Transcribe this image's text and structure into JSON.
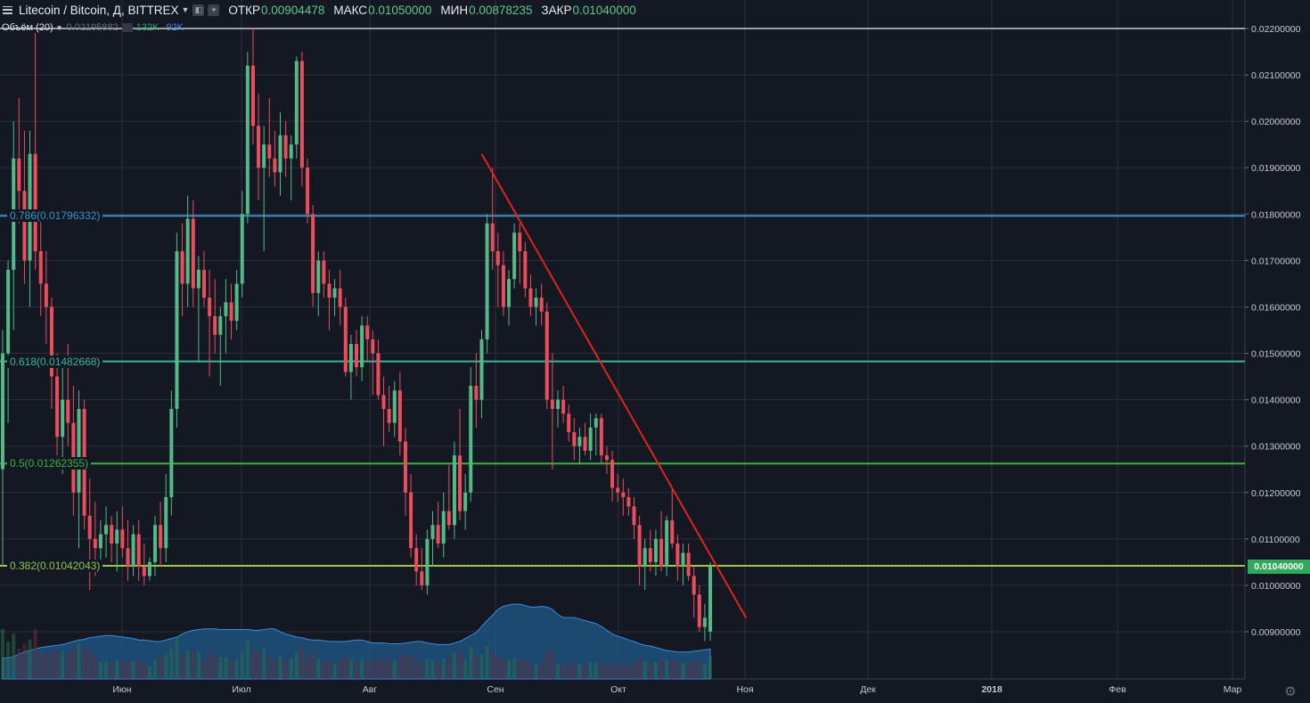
{
  "header": {
    "title": "Litecoin / Bitcoin, Д, BITTREX",
    "open_label": "ОТКР",
    "open_value": "0.00904478",
    "high_label": "МАКС",
    "high_value": "0.01050000",
    "low_label": "МИН",
    "low_value": "0.00878235",
    "close_label": "ЗАКР",
    "close_value": "0.01040000",
    "menu_icon": "hamburger-menu-icon",
    "settings_icon": "gear-icon"
  },
  "volume_legend": {
    "label": "Объём (20)",
    "muted_value": "0.02195882",
    "green_value": "132K",
    "blue_value": "92K"
  },
  "colors": {
    "background": "#141823",
    "grid": "#2a2f3b",
    "up": "#53b987",
    "down": "#eb4d5c",
    "fib_0786": "#3a91c9",
    "fib_0618": "#36b59a",
    "fib_05": "#3cb043",
    "fib_0382": "#8bc34a",
    "trendline": "#e2231a",
    "volume_area": "#1e5a8a",
    "axis_text": "#c5cbce"
  },
  "chart_data": {
    "type": "candlestick",
    "symbol": "Litecoin / Bitcoin",
    "interval": "Д",
    "exchange": "BITTREX",
    "ylim": [
      0.0083,
      0.0226
    ],
    "y_ticks": [
      "0.02200000",
      "0.02100000",
      "0.02000000",
      "0.01900000",
      "0.01800000",
      "0.01700000",
      "0.01600000",
      "0.01500000",
      "0.01400000",
      "0.01300000",
      "0.01200000",
      "0.01100000",
      "0.01000000",
      "0.00900000"
    ],
    "x_ticks": [
      "Июн",
      "Июл",
      "Авг",
      "Сен",
      "Окт",
      "Ноя",
      "Дек",
      "2018",
      "Фев",
      "Мар"
    ],
    "last_price": "0.01040000",
    "candles": [
      [
        0.0125,
        0.0155,
        0.0104,
        0.015
      ],
      [
        0.015,
        0.017,
        0.0135,
        0.0168
      ],
      [
        0.0168,
        0.02,
        0.0155,
        0.0192
      ],
      [
        0.0192,
        0.0205,
        0.0178,
        0.0185
      ],
      [
        0.0185,
        0.0198,
        0.0165,
        0.017
      ],
      [
        0.017,
        0.0198,
        0.016,
        0.0193
      ],
      [
        0.0193,
        0.0219,
        0.0168,
        0.0172
      ],
      [
        0.0172,
        0.018,
        0.0158,
        0.0165
      ],
      [
        0.0165,
        0.0172,
        0.0152,
        0.016
      ],
      [
        0.016,
        0.0162,
        0.0138,
        0.0145
      ],
      [
        0.0145,
        0.015,
        0.0128,
        0.0132
      ],
      [
        0.0132,
        0.0148,
        0.0124,
        0.014
      ],
      [
        0.014,
        0.0152,
        0.013,
        0.0135
      ],
      [
        0.0135,
        0.0143,
        0.0115,
        0.012
      ],
      [
        0.012,
        0.0142,
        0.0108,
        0.0138
      ],
      [
        0.0138,
        0.014,
        0.0112,
        0.0115
      ],
      [
        0.0115,
        0.0123,
        0.0099,
        0.011
      ],
      [
        0.011,
        0.0118,
        0.0102,
        0.0108
      ],
      [
        0.0108,
        0.0114,
        0.0104,
        0.0111
      ],
      [
        0.0111,
        0.0117,
        0.0106,
        0.0113
      ],
      [
        0.0113,
        0.0115,
        0.0105,
        0.0109
      ],
      [
        0.0109,
        0.0116,
        0.0103,
        0.0112
      ],
      [
        0.0112,
        0.0117,
        0.0106,
        0.0108
      ],
      [
        0.0108,
        0.0114,
        0.0101,
        0.0104
      ],
      [
        0.0104,
        0.0113,
        0.0102,
        0.0111
      ],
      [
        0.0111,
        0.0114,
        0.0101,
        0.0104
      ],
      [
        0.0104,
        0.0109,
        0.01,
        0.0102
      ],
      [
        0.0102,
        0.0106,
        0.0101,
        0.0105
      ],
      [
        0.0105,
        0.0115,
        0.0102,
        0.0113
      ],
      [
        0.0113,
        0.0118,
        0.0104,
        0.0108
      ],
      [
        0.0108,
        0.0124,
        0.0105,
        0.0119
      ],
      [
        0.0119,
        0.0142,
        0.0115,
        0.0138
      ],
      [
        0.0138,
        0.0176,
        0.0134,
        0.0172
      ],
      [
        0.0172,
        0.0178,
        0.0158,
        0.0165
      ],
      [
        0.0165,
        0.0184,
        0.016,
        0.0179
      ],
      [
        0.0179,
        0.0183,
        0.016,
        0.0164
      ],
      [
        0.0164,
        0.0171,
        0.0148,
        0.0168
      ],
      [
        0.0168,
        0.0172,
        0.016,
        0.0162
      ],
      [
        0.0162,
        0.0168,
        0.0145,
        0.0158
      ],
      [
        0.0158,
        0.0166,
        0.015,
        0.0154
      ],
      [
        0.0154,
        0.016,
        0.0143,
        0.0158
      ],
      [
        0.0158,
        0.0166,
        0.015,
        0.0161
      ],
      [
        0.0161,
        0.0165,
        0.0153,
        0.0157
      ],
      [
        0.0157,
        0.0168,
        0.0155,
        0.0165
      ],
      [
        0.0165,
        0.0185,
        0.0162,
        0.018
      ],
      [
        0.018,
        0.0215,
        0.0178,
        0.0212
      ],
      [
        0.0212,
        0.022,
        0.0195,
        0.0199
      ],
      [
        0.0199,
        0.0206,
        0.0183,
        0.019
      ],
      [
        0.019,
        0.0199,
        0.0172,
        0.0195
      ],
      [
        0.0195,
        0.0205,
        0.0188,
        0.0192
      ],
      [
        0.0192,
        0.0198,
        0.0186,
        0.0189
      ],
      [
        0.0189,
        0.0202,
        0.0184,
        0.0197
      ],
      [
        0.0197,
        0.02,
        0.0188,
        0.0192
      ],
      [
        0.0192,
        0.0197,
        0.0183,
        0.0195
      ],
      [
        0.0195,
        0.0214,
        0.0192,
        0.0213
      ],
      [
        0.0213,
        0.0215,
        0.0186,
        0.019
      ],
      [
        0.019,
        0.0192,
        0.0178,
        0.018
      ],
      [
        0.018,
        0.0182,
        0.016,
        0.0163
      ],
      [
        0.0163,
        0.0172,
        0.0158,
        0.017
      ],
      [
        0.017,
        0.0172,
        0.0162,
        0.0165
      ],
      [
        0.0165,
        0.0168,
        0.0155,
        0.0162
      ],
      [
        0.0162,
        0.0166,
        0.0158,
        0.0164
      ],
      [
        0.0164,
        0.0168,
        0.0156,
        0.016
      ],
      [
        0.016,
        0.0162,
        0.0145,
        0.0146
      ],
      [
        0.0146,
        0.0154,
        0.014,
        0.0152
      ],
      [
        0.0152,
        0.0155,
        0.0145,
        0.0147
      ],
      [
        0.0147,
        0.0158,
        0.0144,
        0.0156
      ],
      [
        0.0156,
        0.0158,
        0.0148,
        0.0153
      ],
      [
        0.0153,
        0.0155,
        0.0141,
        0.015
      ],
      [
        0.015,
        0.0153,
        0.014,
        0.0141
      ],
      [
        0.0141,
        0.0145,
        0.013,
        0.0138
      ],
      [
        0.0138,
        0.0143,
        0.0133,
        0.0135
      ],
      [
        0.0135,
        0.0144,
        0.0132,
        0.0142
      ],
      [
        0.0142,
        0.0146,
        0.0128,
        0.0131
      ],
      [
        0.0131,
        0.0134,
        0.0115,
        0.012
      ],
      [
        0.012,
        0.0124,
        0.0106,
        0.0108
      ],
      [
        0.0108,
        0.0111,
        0.01,
        0.0103
      ],
      [
        0.0103,
        0.0108,
        0.0099,
        0.01
      ],
      [
        0.01,
        0.0112,
        0.0098,
        0.011
      ],
      [
        0.011,
        0.0116,
        0.0104,
        0.0113
      ],
      [
        0.0113,
        0.0118,
        0.0108,
        0.0109
      ],
      [
        0.0109,
        0.012,
        0.0106,
        0.0116
      ],
      [
        0.0116,
        0.0126,
        0.0112,
        0.0113
      ],
      [
        0.0113,
        0.0131,
        0.011,
        0.0128
      ],
      [
        0.0128,
        0.0138,
        0.0114,
        0.0116
      ],
      [
        0.0116,
        0.0124,
        0.0112,
        0.012
      ],
      [
        0.012,
        0.0147,
        0.0118,
        0.0143
      ],
      [
        0.0143,
        0.015,
        0.0134,
        0.014
      ],
      [
        0.014,
        0.0155,
        0.0136,
        0.0153
      ],
      [
        0.0153,
        0.018,
        0.015,
        0.0178
      ],
      [
        0.0178,
        0.019,
        0.0168,
        0.0172
      ],
      [
        0.0172,
        0.0176,
        0.016,
        0.0169
      ],
      [
        0.0169,
        0.0172,
        0.0158,
        0.016
      ],
      [
        0.016,
        0.0168,
        0.0156,
        0.0166
      ],
      [
        0.0166,
        0.0178,
        0.0164,
        0.0176
      ],
      [
        0.0176,
        0.0178,
        0.0165,
        0.0172
      ],
      [
        0.0172,
        0.0174,
        0.0162,
        0.0164
      ],
      [
        0.0164,
        0.0167,
        0.0158,
        0.016
      ],
      [
        0.016,
        0.0164,
        0.0156,
        0.0162
      ],
      [
        0.0162,
        0.0165,
        0.0156,
        0.0159
      ],
      [
        0.0159,
        0.0161,
        0.0138,
        0.014
      ],
      [
        0.014,
        0.015,
        0.0125,
        0.0138
      ],
      [
        0.0138,
        0.0142,
        0.0134,
        0.014
      ],
      [
        0.014,
        0.0143,
        0.0135,
        0.0137
      ],
      [
        0.0137,
        0.0139,
        0.0131,
        0.0133
      ],
      [
        0.0133,
        0.0136,
        0.0127,
        0.013
      ],
      [
        0.013,
        0.0134,
        0.0126,
        0.0132
      ],
      [
        0.0132,
        0.0135,
        0.0128,
        0.0129
      ],
      [
        0.0129,
        0.0137,
        0.0127,
        0.0134
      ],
      [
        0.0134,
        0.0137,
        0.0128,
        0.0136
      ],
      [
        0.0136,
        0.0137,
        0.0126,
        0.0128
      ],
      [
        0.0128,
        0.013,
        0.0124,
        0.0127
      ],
      [
        0.0127,
        0.0129,
        0.0118,
        0.0121
      ],
      [
        0.0121,
        0.0124,
        0.0118,
        0.012
      ],
      [
        0.012,
        0.0123,
        0.0115,
        0.0119
      ],
      [
        0.0119,
        0.0121,
        0.0115,
        0.0117
      ],
      [
        0.0117,
        0.0119,
        0.011,
        0.0113
      ],
      [
        0.0113,
        0.0115,
        0.01,
        0.0104
      ],
      [
        0.0104,
        0.011,
        0.0099,
        0.0108
      ],
      [
        0.0108,
        0.0112,
        0.0103,
        0.0105
      ],
      [
        0.0105,
        0.0112,
        0.0102,
        0.011
      ],
      [
        0.011,
        0.0116,
        0.0103,
        0.0104
      ],
      [
        0.0104,
        0.0115,
        0.0102,
        0.0114
      ],
      [
        0.0114,
        0.0121,
        0.0108,
        0.0109
      ],
      [
        0.0109,
        0.0111,
        0.0101,
        0.0104
      ],
      [
        0.0104,
        0.0109,
        0.01,
        0.0107
      ],
      [
        0.0107,
        0.0109,
        0.0101,
        0.0102
      ],
      [
        0.0102,
        0.0104,
        0.0093,
        0.0098
      ],
      [
        0.0098,
        0.01,
        0.009,
        0.0091
      ],
      [
        0.0091,
        0.0096,
        0.0088,
        0.0093
      ],
      [
        0.009,
        0.0105,
        0.0088,
        0.0104
      ]
    ],
    "volume_area": [
      0.28,
      0.28,
      0.3,
      0.33,
      0.36,
      0.38,
      0.4,
      0.42,
      0.43,
      0.44,
      0.45,
      0.46,
      0.48,
      0.5,
      0.52,
      0.53,
      0.55,
      0.56,
      0.57,
      0.58,
      0.58,
      0.57,
      0.56,
      0.55,
      0.54,
      0.52,
      0.52,
      0.51,
      0.5,
      0.5,
      0.52,
      0.54,
      0.56,
      0.6,
      0.63,
      0.65,
      0.66,
      0.67,
      0.67,
      0.67,
      0.66,
      0.66,
      0.66,
      0.66,
      0.66,
      0.66,
      0.65,
      0.65,
      0.66,
      0.67,
      0.67,
      0.63,
      0.6,
      0.58,
      0.56,
      0.55,
      0.53,
      0.52,
      0.52,
      0.51,
      0.5,
      0.5,
      0.5,
      0.5,
      0.51,
      0.52,
      0.52,
      0.5,
      0.48,
      0.48,
      0.48,
      0.47,
      0.47,
      0.47,
      0.48,
      0.49,
      0.5,
      0.5,
      0.48,
      0.47,
      0.46,
      0.46,
      0.46,
      0.48,
      0.5,
      0.54,
      0.58,
      0.62,
      0.7,
      0.78,
      0.85,
      0.93,
      0.97,
      0.99,
      1.0,
      1.0,
      0.98,
      0.96,
      0.96,
      0.97,
      0.96,
      0.93,
      0.86,
      0.82,
      0.82,
      0.82,
      0.8,
      0.78,
      0.76,
      0.74,
      0.7,
      0.65,
      0.6,
      0.57,
      0.55,
      0.52,
      0.5,
      0.47,
      0.45,
      0.44,
      0.42,
      0.4,
      0.38,
      0.37,
      0.36,
      0.36,
      0.36,
      0.37,
      0.38,
      0.39,
      0.4
    ],
    "fib_levels": [
      {
        "ratio": "0.786",
        "label": "0.786(0.01796332)",
        "value": 0.01796332
      },
      {
        "ratio": "0.618",
        "label": "0.618(0.01482668)",
        "value": 0.01482668
      },
      {
        "ratio": "0.5",
        "label": "0.5(0.01262355)",
        "value": 0.01262355
      },
      {
        "ratio": "0.382",
        "label": "0.382(0.01042043)",
        "value": 0.01042043
      }
    ],
    "top_line": 0.022,
    "trendline": {
      "from": [
        88,
        0.0193
      ],
      "to": [
        132,
        0.0093
      ]
    }
  }
}
